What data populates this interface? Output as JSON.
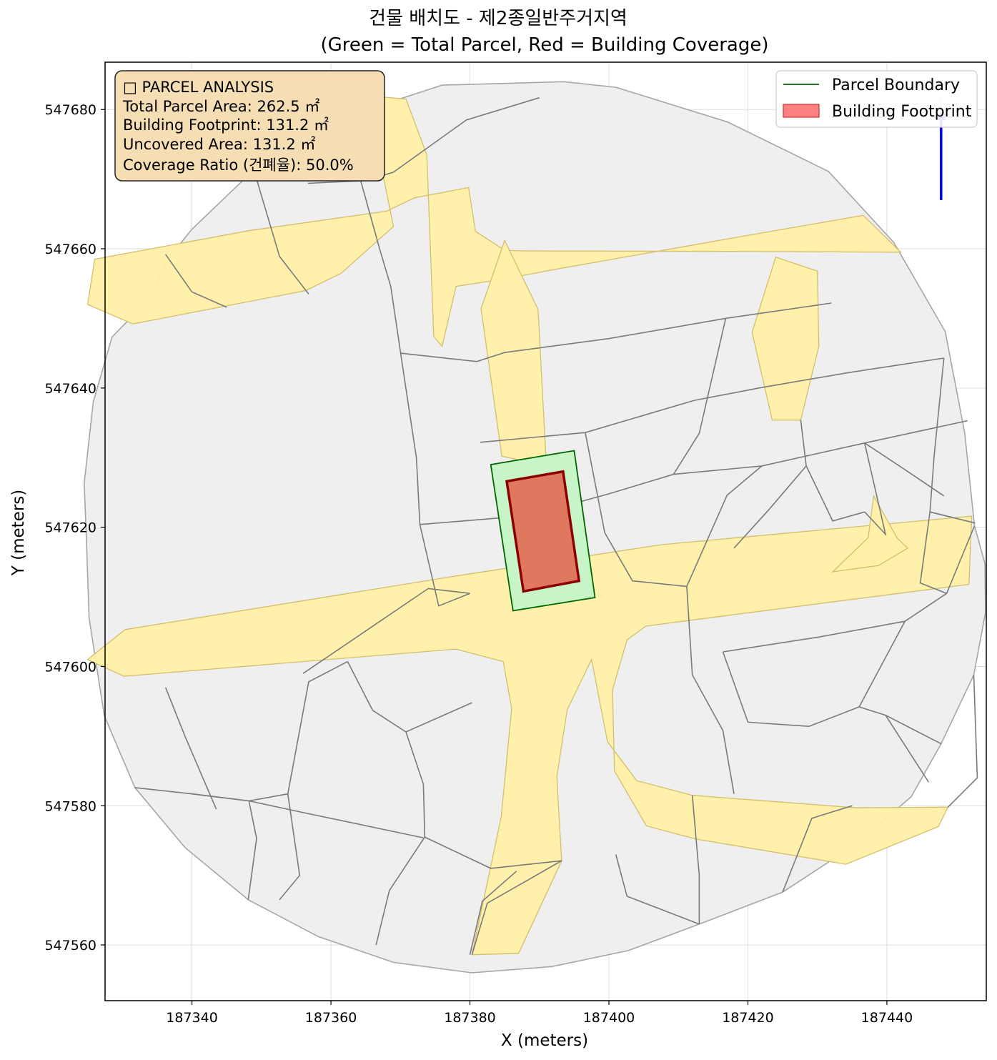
{
  "chart_data": {
    "type": "map",
    "title": "건물 배치도 - 제2종일반주거지역",
    "subtitle": "(Green = Total Parcel, Red = Building Coverage)",
    "xlabel": "X (meters)",
    "ylabel": "Y (meters)",
    "xlim": [
      187327.5,
      187454.3
    ],
    "ylim": [
      547552.0,
      547686.8
    ],
    "xticks": [
      187340,
      187360,
      187380,
      187400,
      187420,
      187440
    ],
    "yticks": [
      547560,
      547580,
      547600,
      547620,
      547640,
      547660,
      547680
    ],
    "grid": true,
    "legend": {
      "position": "top-right",
      "entries": [
        {
          "label": "Parcel Boundary",
          "style": "line",
          "color": "#006400"
        },
        {
          "label": "Building Footprint",
          "style": "patch",
          "color": "#ff8080",
          "edge": "#d03030"
        }
      ]
    },
    "info_box": {
      "position": "top-left",
      "lines": [
        "□ PARCEL ANALYSIS",
        "Total Parcel Area: 262.5 ㎡",
        "Building Footprint: 131.2 ㎡",
        "Uncovered Area: 131.2 ㎡",
        "Coverage Ratio (건폐율): 50.0%"
      ]
    },
    "metrics": {
      "total_parcel_area_m2": 262.5,
      "building_footprint_m2": 131.2,
      "uncovered_area_m2": 131.2,
      "coverage_ratio_pct": 50.0
    },
    "context_outline": [
      [
        187334.1,
        547653.1
      ],
      [
        187336.4,
        547658.3
      ],
      [
        187339.9,
        547662.7
      ],
      [
        187349.3,
        547671.7
      ],
      [
        187358.5,
        547677.8
      ],
      [
        187376.0,
        547683.5
      ],
      [
        187393.5,
        547684.0
      ],
      [
        187401.0,
        547683.2
      ],
      [
        187417.1,
        547678.2
      ],
      [
        187431.6,
        547671.1
      ],
      [
        187441.0,
        547660.9
      ],
      [
        187448.4,
        547648.1
      ],
      [
        187451.2,
        547633.5
      ],
      [
        187452.6,
        547620.2
      ],
      [
        187454.1,
        547614.8
      ],
      [
        187454.2,
        547607.8
      ],
      [
        187452.5,
        547598.8
      ],
      [
        187447.8,
        547588.9
      ],
      [
        187443.5,
        547581.3
      ],
      [
        187435.6,
        547574.5
      ],
      [
        187425.0,
        547567.6
      ],
      [
        187413.0,
        547563.0
      ],
      [
        187402.8,
        547559.2
      ],
      [
        187391.8,
        547556.9
      ],
      [
        187380.3,
        547556.0
      ],
      [
        187369.0,
        547557.5
      ],
      [
        187358.2,
        547561.2
      ],
      [
        187348.1,
        547566.5
      ],
      [
        187339.0,
        547574.0
      ],
      [
        187331.8,
        547582.6
      ],
      [
        187327.4,
        547592.9
      ],
      [
        187325.2,
        547607.0
      ],
      [
        187324.8,
        547618.9
      ],
      [
        187324.5,
        547626.3
      ],
      [
        187325.8,
        547638.0
      ],
      [
        187328.5,
        547647.3
      ],
      [
        187334.1,
        547653.1
      ]
    ],
    "roads": [
      [
        [
          187325.0,
          547652.0
        ],
        [
          187326.0,
          547658.5
        ],
        [
          187348.2,
          547662.6
        ],
        [
          187368.0,
          547665.4
        ],
        [
          187372.0,
          547667.3
        ],
        [
          187379.8,
          547668.8
        ],
        [
          187380.8,
          547662.5
        ],
        [
          187385.0,
          547659.8
        ],
        [
          187387.5,
          547659.7
        ],
        [
          187425.0,
          547659.6
        ],
        [
          187442.0,
          547659.5
        ],
        [
          187436.6,
          547664.8
        ],
        [
          187417.0,
          547661.4
        ],
        [
          187392.0,
          547657.0
        ],
        [
          187384.6,
          547655.6
        ],
        [
          187378.0,
          547654.6
        ],
        [
          187376.0,
          547646.0
        ],
        [
          187374.8,
          547647.4
        ],
        [
          187373.8,
          547673.5
        ],
        [
          187370.8,
          547681.5
        ],
        [
          187365.2,
          547682.0
        ],
        [
          187369.0,
          547663.2
        ],
        [
          187361.5,
          547656.5
        ],
        [
          187356.4,
          547654.0
        ],
        [
          187331.5,
          547649.2
        ],
        [
          187325.0,
          547652.0
        ]
      ],
      [
        [
          187325.0,
          547601.0
        ],
        [
          187330.4,
          547605.3
        ],
        [
          187378.0,
          547613.0
        ],
        [
          187407.6,
          547617.5
        ],
        [
          187452.2,
          547621.6
        ],
        [
          187451.8,
          547611.8
        ],
        [
          187411.4,
          547606.6
        ],
        [
          187405.3,
          547605.8
        ],
        [
          187402.6,
          547603.8
        ],
        [
          187400.5,
          547596.6
        ],
        [
          187400.8,
          547585.0
        ],
        [
          187405.4,
          547577.1
        ],
        [
          187412.6,
          547575.2
        ],
        [
          187434.1,
          547571.6
        ],
        [
          187447.4,
          547577.0
        ],
        [
          187448.8,
          547579.8
        ],
        [
          187435.6,
          547579.7
        ],
        [
          187412.0,
          547581.5
        ],
        [
          187404.0,
          547583.6
        ],
        [
          187399.8,
          547589.2
        ],
        [
          187397.5,
          547601.0
        ],
        [
          187394.0,
          547593.8
        ],
        [
          187392.5,
          547584.1
        ],
        [
          187393.2,
          547572.1
        ],
        [
          187387.0,
          547558.8
        ],
        [
          187380.3,
          547558.6
        ],
        [
          187384.5,
          547578.4
        ],
        [
          187386.0,
          547594.0
        ],
        [
          187384.8,
          547600.7
        ],
        [
          187378.0,
          547602.5
        ],
        [
          187330.2,
          547598.6
        ],
        [
          187325.0,
          547601.0
        ]
      ],
      [
        [
          187385.0,
          547661.2
        ],
        [
          187389.8,
          547651.3
        ],
        [
          187391.0,
          547628.8
        ],
        [
          187384.6,
          547630.2
        ],
        [
          187381.6,
          547651.4
        ],
        [
          187385.0,
          547661.2
        ]
      ],
      [
        [
          187424.0,
          547658.8
        ],
        [
          187430.0,
          547656.8
        ],
        [
          187430.2,
          547646.0
        ],
        [
          187427.6,
          547635.4
        ],
        [
          187423.5,
          547635.4
        ],
        [
          187420.6,
          547648.0
        ],
        [
          187424.0,
          547658.8
        ]
      ],
      [
        [
          187438.1,
          547624.5
        ],
        [
          187441.5,
          547618.4
        ],
        [
          187443.0,
          547617.0
        ],
        [
          187438.8,
          547614.5
        ],
        [
          187432.2,
          547613.6
        ],
        [
          187437.3,
          547618.5
        ],
        [
          187438.1,
          547624.5
        ]
      ]
    ],
    "parcel_lines": [
      [
        [
          187356.7,
          547669.4
        ],
        [
          187365.1,
          547669.8
        ],
        [
          187369.0,
          547671.0
        ],
        [
          187379.5,
          547678.5
        ],
        [
          187390.0,
          547681.7
        ]
      ],
      [
        [
          187336.2,
          547659.2
        ],
        [
          187340.0,
          547653.8
        ],
        [
          187345.0,
          547651.6
        ]
      ],
      [
        [
          187349.0,
          547671.0
        ],
        [
          187352.6,
          547658.9
        ],
        [
          187356.8,
          547653.5
        ]
      ],
      [
        [
          187364.0,
          547670.8
        ],
        [
          187367.0,
          547660.0
        ],
        [
          187368.6,
          547654.6
        ],
        [
          187370.6,
          547641.2
        ],
        [
          187372.3,
          547630.0
        ],
        [
          187372.8,
          547620.4
        ]
      ],
      [
        [
          187370.0,
          547645.0
        ],
        [
          187381.0,
          547643.8
        ],
        [
          187385.0,
          547645.1
        ],
        [
          187400.0,
          547647.1
        ],
        [
          187416.8,
          547650.0
        ],
        [
          187432.0,
          547652.2
        ]
      ],
      [
        [
          187381.5,
          547632.2
        ],
        [
          187396.6,
          547633.6
        ],
        [
          187412.2,
          547638.2
        ],
        [
          187421.6,
          547640.0
        ],
        [
          187434.4,
          547642.2
        ],
        [
          187448.2,
          547644.3
        ]
      ],
      [
        [
          187372.8,
          547620.4
        ],
        [
          187388.7,
          547621.7
        ],
        [
          187400.0,
          547624.8
        ],
        [
          187409.3,
          547627.6
        ],
        [
          187422.0,
          547628.8
        ],
        [
          187436.8,
          547632.1
        ],
        [
          187451.6,
          547635.3
        ]
      ],
      [
        [
          187396.6,
          547633.6
        ],
        [
          187399.4,
          547619.2
        ],
        [
          187403.4,
          547612.3
        ],
        [
          187411.2,
          547611.5
        ]
      ],
      [
        [
          187416.8,
          547650.0
        ],
        [
          187413.0,
          547633.5
        ],
        [
          187409.3,
          547627.6
        ]
      ],
      [
        [
          187411.2,
          547611.5
        ],
        [
          187417.0,
          547624.6
        ],
        [
          187422.0,
          547628.8
        ]
      ],
      [
        [
          187427.6,
          547635.4
        ],
        [
          187428.4,
          547628.8
        ],
        [
          187432.2,
          547620.9
        ],
        [
          187436.8,
          547622.2
        ]
      ],
      [
        [
          187436.8,
          547632.1
        ],
        [
          187441.8,
          547628.8
        ],
        [
          187448.2,
          547624.5
        ]
      ],
      [
        [
          187448.2,
          547644.3
        ],
        [
          187446.8,
          547630.3
        ],
        [
          187446.2,
          547622.2
        ],
        [
          187452.7,
          547620.6
        ]
      ],
      [
        [
          187452.6,
          547620.2
        ],
        [
          187448.6,
          547610.5
        ],
        [
          187442.6,
          547606.5
        ],
        [
          187430.0,
          547604.2
        ],
        [
          187416.4,
          547602.1
        ]
      ],
      [
        [
          187411.2,
          547611.5
        ],
        [
          187412.0,
          547598.8
        ],
        [
          187416.4,
          547590.8
        ],
        [
          187418.0,
          547581.7
        ]
      ],
      [
        [
          187416.4,
          547602.1
        ],
        [
          187420.0,
          547592.0
        ],
        [
          187428.8,
          547591.4
        ],
        [
          187436.0,
          547594.2
        ],
        [
          187439.8,
          547593.0
        ],
        [
          187447.8,
          547588.9
        ]
      ],
      [
        [
          187425.0,
          547567.6
        ],
        [
          187429.2,
          547578.2
        ],
        [
          187435.0,
          547580.0
        ]
      ],
      [
        [
          187412.0,
          547581.5
        ],
        [
          187413.0,
          547570.0
        ],
        [
          187413.0,
          547563.0
        ]
      ],
      [
        [
          187401.0,
          547573.0
        ],
        [
          187402.6,
          547567.0
        ],
        [
          187413.0,
          547563.0
        ]
      ],
      [
        [
          187380.0,
          547558.6
        ],
        [
          187381.8,
          547566.3
        ],
        [
          187386.7,
          547570.6
        ]
      ],
      [
        [
          187353.8,
          547581.7
        ],
        [
          187356.8,
          547597.8
        ],
        [
          187362.4,
          547600.7
        ]
      ],
      [
        [
          187362.4,
          547600.7
        ],
        [
          187366.0,
          547593.7
        ],
        [
          187370.8,
          547590.6
        ],
        [
          187380.3,
          547594.8
        ]
      ],
      [
        [
          187370.8,
          547590.6
        ],
        [
          187373.3,
          547583.1
        ],
        [
          187373.5,
          547575.5
        ],
        [
          187368.4,
          547567.8
        ],
        [
          187366.5,
          547560.0
        ]
      ],
      [
        [
          187331.8,
          547582.6
        ],
        [
          187340.0,
          547581.7
        ],
        [
          187348.2,
          547580.7
        ],
        [
          187356.1,
          547579.0
        ],
        [
          187373.3,
          547575.4
        ]
      ],
      [
        [
          187353.8,
          547581.7
        ],
        [
          187355.5,
          547570.0
        ],
        [
          187352.6,
          547566.5
        ]
      ],
      [
        [
          187336.2,
          547597.0
        ],
        [
          187339.0,
          547590.0
        ],
        [
          187343.5,
          547579.5
        ]
      ],
      [
        [
          187348.2,
          547580.7
        ],
        [
          187349.3,
          547575.3
        ],
        [
          187348.1,
          547566.5
        ]
      ],
      [
        [
          187353.8,
          547581.7
        ],
        [
          187348.2,
          547580.7
        ],
        [
          187340.0,
          547581.7
        ]
      ],
      [
        [
          187373.5,
          547575.5
        ],
        [
          187383.0,
          547571.0
        ],
        [
          187393.2,
          547572.1
        ]
      ],
      [
        [
          187380.3,
          547558.6
        ],
        [
          187382.5,
          547566.0
        ],
        [
          187393.2,
          547572.1
        ]
      ],
      [
        [
          187380.0,
          547610.5
        ],
        [
          187374.0,
          547611.2
        ],
        [
          187356.0,
          547599.0
        ]
      ],
      [
        [
          187372.8,
          547620.4
        ],
        [
          187375.5,
          547608.7
        ],
        [
          187380.0,
          547610.5
        ]
      ],
      [
        [
          187436.8,
          547632.1
        ],
        [
          187439.8,
          547619.0
        ],
        [
          187436.8,
          547622.2
        ]
      ],
      [
        [
          187448.8,
          547579.8
        ],
        [
          187453.0,
          547584.0
        ],
        [
          187452.5,
          547598.8
        ]
      ],
      [
        [
          187442.6,
          547606.5
        ],
        [
          187436.0,
          547594.2
        ]
      ],
      [
        [
          187439.8,
          547593.0
        ],
        [
          187446.0,
          547583.4
        ]
      ],
      [
        [
          187428.4,
          547628.8
        ],
        [
          187423.0,
          547622.5
        ],
        [
          187418.0,
          547617.0
        ]
      ],
      [
        [
          187446.2,
          547622.2
        ],
        [
          187444.8,
          547612.0
        ],
        [
          187448.6,
          547610.5
        ]
      ]
    ],
    "parcel_polygon": [
      [
        187383.0,
        547629.0
      ],
      [
        187395.0,
        547631.0
      ],
      [
        187398.0,
        547609.9
      ],
      [
        187386.2,
        547608.0
      ],
      [
        187383.0,
        547629.0
      ]
    ],
    "building_polygon": [
      [
        187385.3,
        547626.6
      ],
      [
        187393.4,
        547628.0
      ],
      [
        187395.7,
        547612.3
      ],
      [
        187387.7,
        547610.8
      ],
      [
        187385.3,
        547626.6
      ]
    ],
    "north_arrow": {
      "x": 187447.8,
      "y_from": 547667.0,
      "y_to": 547679.0,
      "color": "#0000ff"
    }
  }
}
